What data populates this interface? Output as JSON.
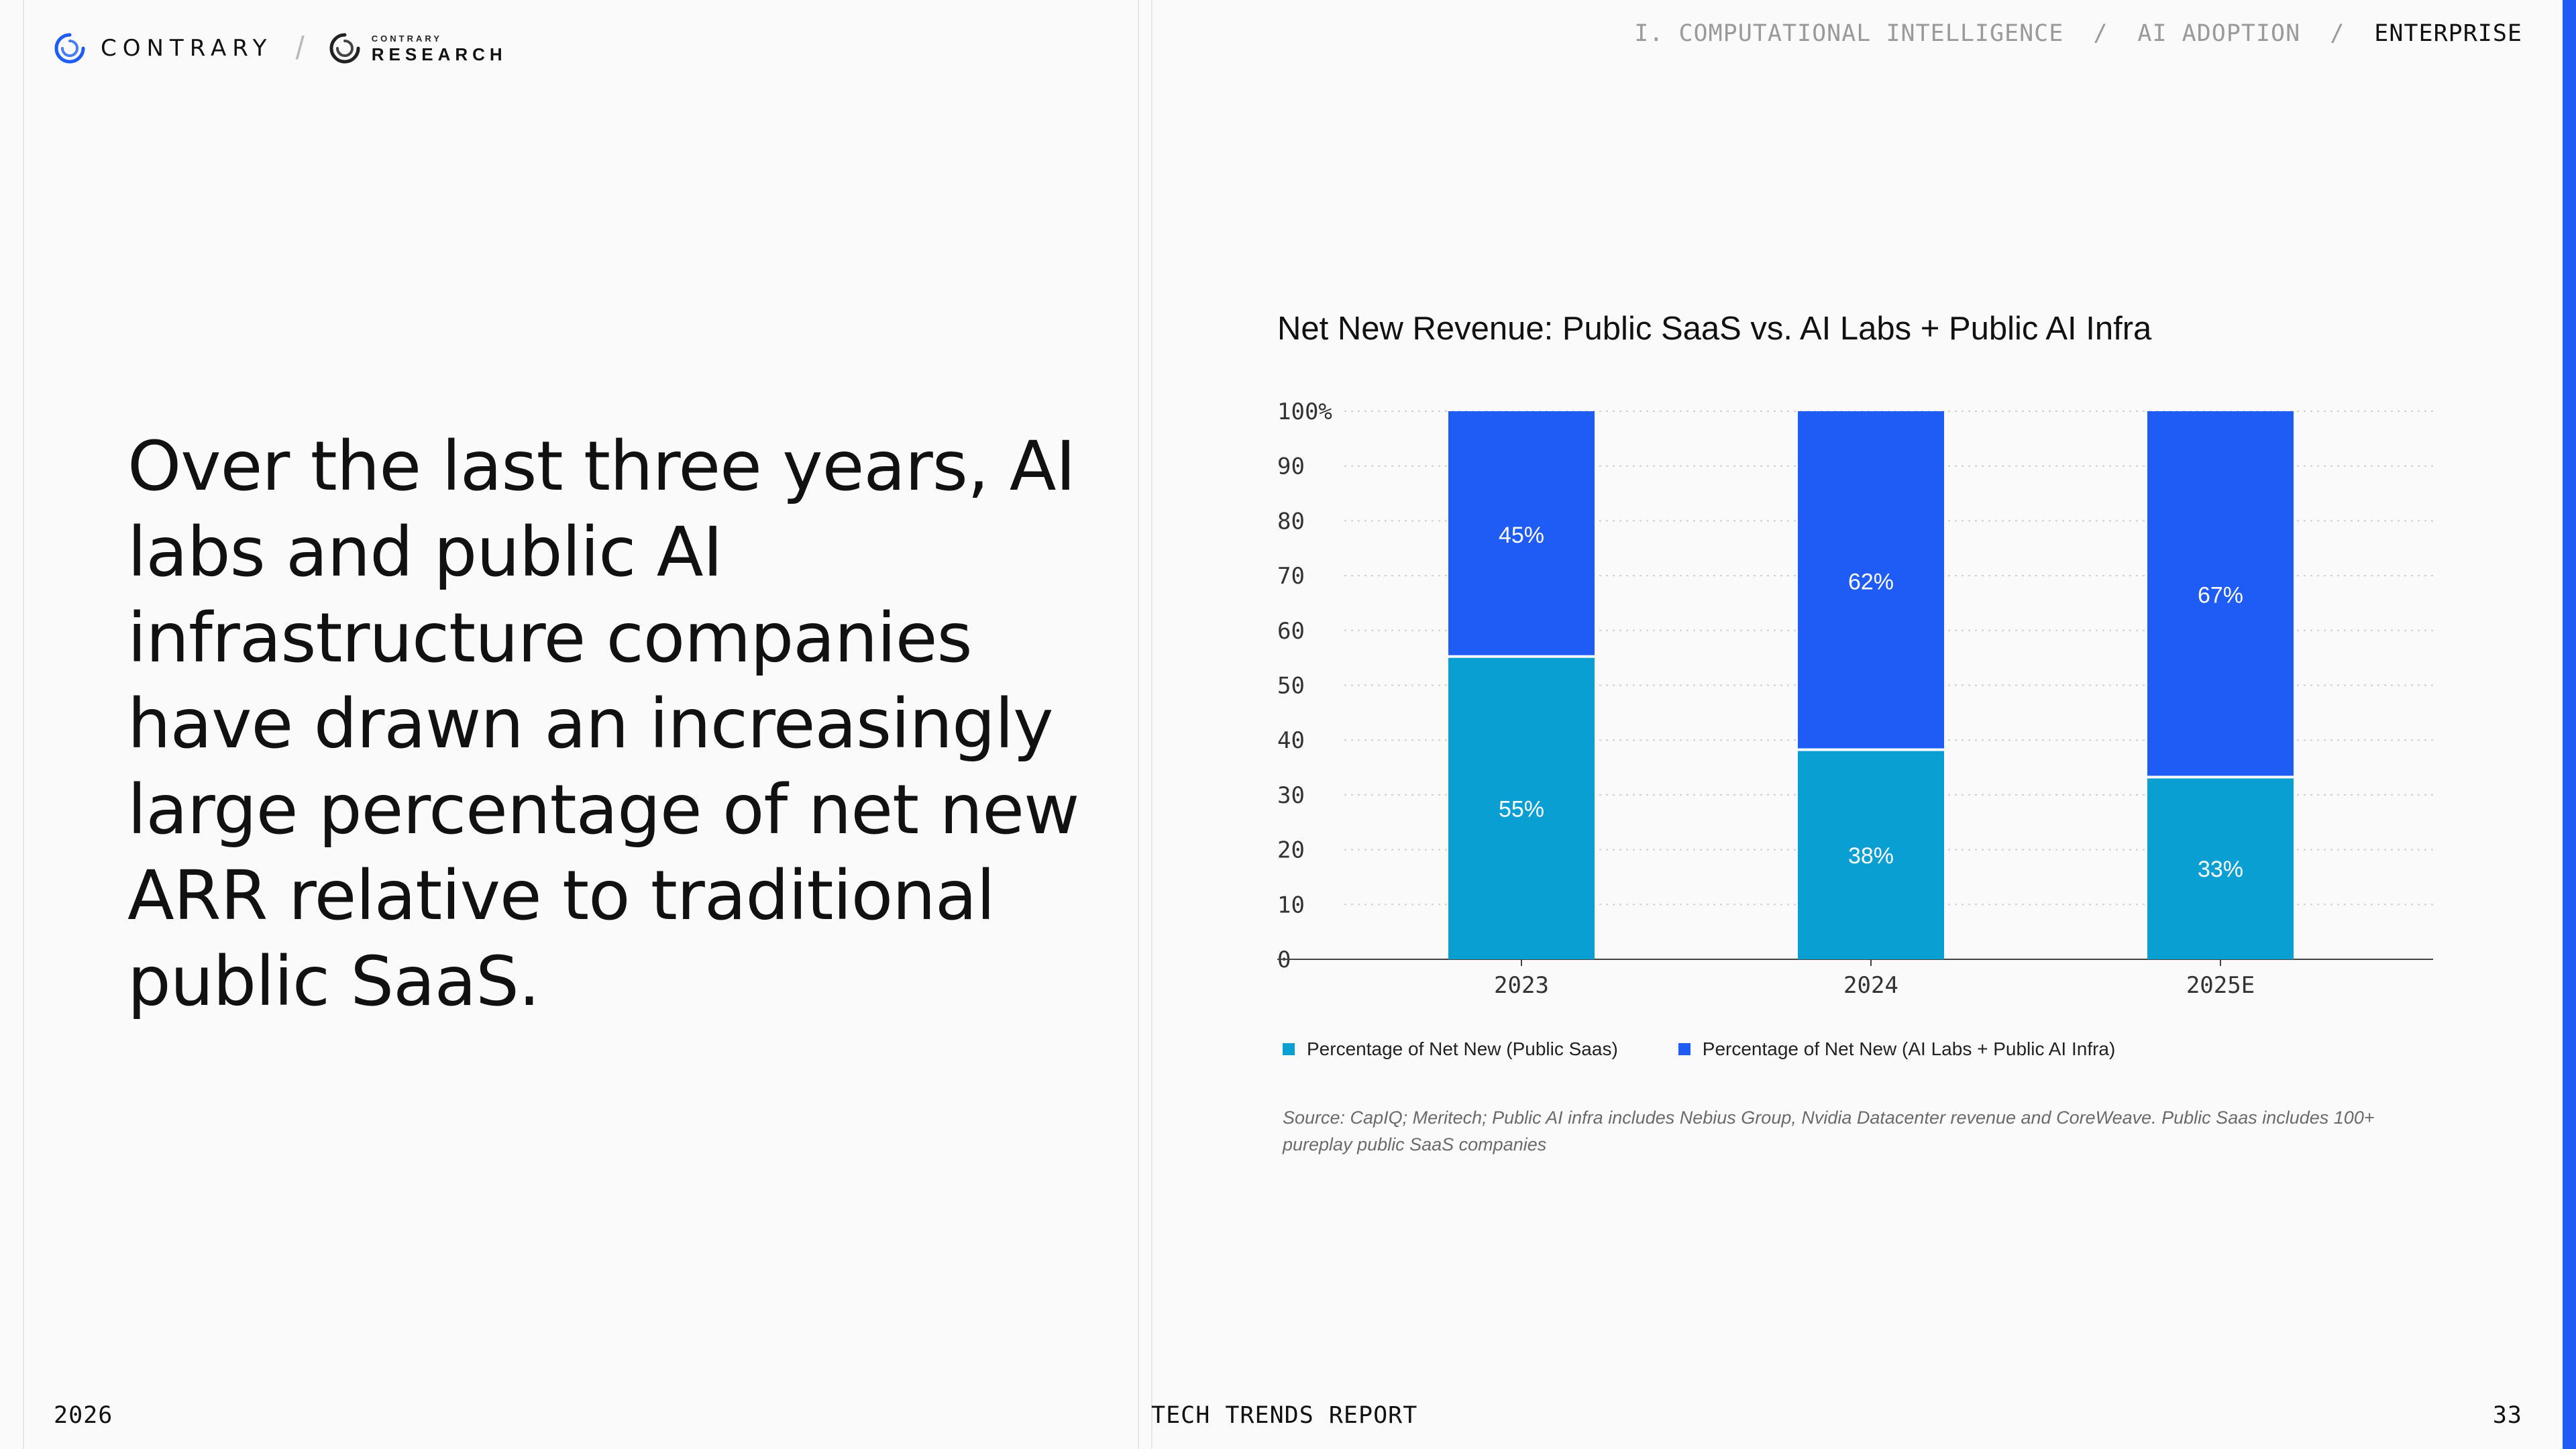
{
  "header": {
    "brand": "CONTRARY",
    "sub_brand_small": "CONTRARY",
    "sub_brand": "RESEARCH",
    "breadcrumb": [
      "I. COMPUTATIONAL INTELLIGENCE",
      "AI ADOPTION",
      "ENTERPRISE"
    ],
    "breadcrumb_separator": "/"
  },
  "headline": "Over the last three years, AI labs and public AI infrastructure companies have drawn an increasingly large percentage of net new ARR relative to traditional public SaaS.",
  "footer": {
    "year": "2026",
    "report": "TECH TRENDS REPORT",
    "page": "33"
  },
  "colors": {
    "saas": "#0a9fd3",
    "ai": "#1e5cf5",
    "accent": "#1e5cf5"
  },
  "chart_data": {
    "type": "bar",
    "stacked": true,
    "title": "Net New Revenue: Public SaaS vs. AI Labs + Public AI Infra",
    "categories": [
      "2023",
      "2024",
      "2025E"
    ],
    "series": [
      {
        "name": "Percentage of Net New (Public Saas)",
        "values": [
          55,
          38,
          33
        ],
        "labels": [
          "55%",
          "38%",
          "33%"
        ],
        "color": "#0a9fd3"
      },
      {
        "name": "Percentage of Net New (AI Labs + Public AI Infra)",
        "values": [
          45,
          62,
          67
        ],
        "labels": [
          "45%",
          "62%",
          "67%"
        ],
        "color": "#1e5cf5"
      }
    ],
    "ylim": [
      0,
      100
    ],
    "yticks": [
      "0",
      "10",
      "20",
      "30",
      "40",
      "50",
      "60",
      "70",
      "80",
      "90",
      "100%"
    ],
    "grid": true,
    "legend_position": "bottom",
    "source": "Source: CapIQ; Meritech; Public AI infra includes Nebius Group, Nvidia Datacenter revenue and CoreWeave. Public Saas includes 100+ pureplay public SaaS companies"
  }
}
